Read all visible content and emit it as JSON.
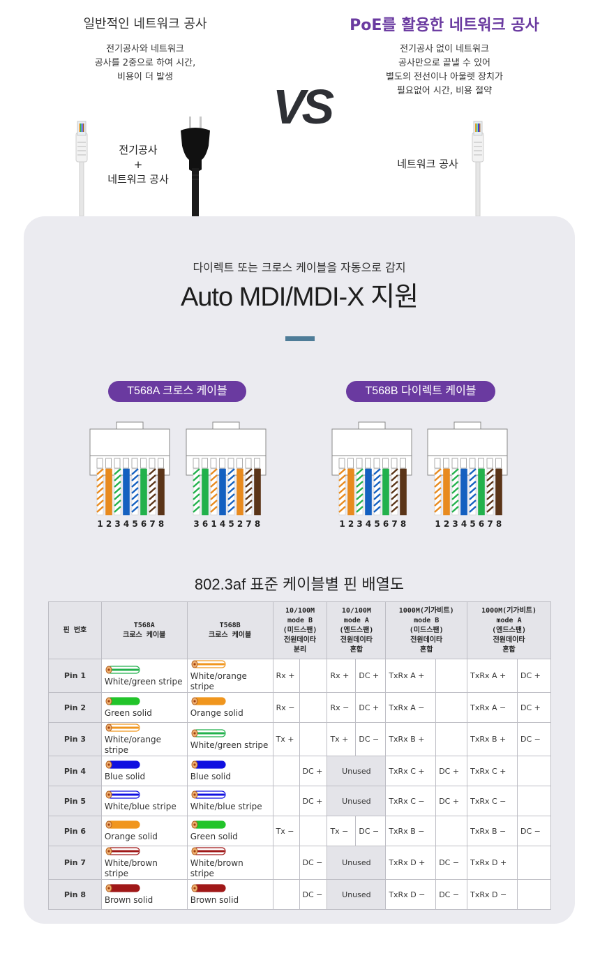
{
  "comparison": {
    "left": {
      "title": "일반적인 네트워크 공사",
      "desc_lines": [
        "전기공사와 네트워크",
        "공사를 2중으로 하여 시간,",
        "비용이 더 발생"
      ],
      "label_lines": [
        "전기공사",
        "+",
        "네트워크 공사"
      ]
    },
    "vs": "VS",
    "right": {
      "title": "PoE를 활용한 네트워크 공사",
      "desc_lines": [
        "전기공사 없이 네트워크",
        "공사만으로 끝낼 수 있어",
        "별도의 전선이나 아울렛 장치가",
        "필요없어 시간, 비용 절약"
      ],
      "label_lines": [
        "네트워크 공사"
      ]
    },
    "accent_color": "#6a3aa0"
  },
  "mdi": {
    "subtitle": "다이렉트 또는 크로스 케이블을 자동으로 감지",
    "title": "Auto MDI/MDI-X 지원",
    "pill_a": "T568A 크로스 케이블",
    "pill_b": "T568B 다이렉트 케이블",
    "connectors": [
      {
        "numbers": "12345678",
        "colors": [
          "wo",
          "o",
          "wg",
          "b",
          "wb",
          "g",
          "wbr",
          "br"
        ]
      },
      {
        "numbers": "36145278",
        "colors": [
          "wg",
          "g",
          "wo",
          "b",
          "wb",
          "o",
          "wbr",
          "br"
        ]
      },
      {
        "numbers": "12345678",
        "colors": [
          "wo",
          "o",
          "wg",
          "b",
          "wb",
          "g",
          "wbr",
          "br"
        ]
      },
      {
        "numbers": "12345678",
        "colors": [
          "wo",
          "o",
          "wg",
          "b",
          "wb",
          "g",
          "wbr",
          "br"
        ]
      }
    ]
  },
  "table": {
    "title": "802.3af  표준 케이블별 핀 배열도",
    "headers": {
      "pin": "핀 번호",
      "t568a": [
        "T568A",
        "크로스 케이블"
      ],
      "t568b": [
        "T568B",
        "크로스 케이블"
      ],
      "mode_b_100": [
        "10/100M",
        "mode B",
        "(미드스팬)",
        "전원데이타",
        "분리"
      ],
      "mode_a_100": [
        "10/100M",
        "mode A",
        "(엔드스팬)",
        "전원데이타",
        "혼합"
      ],
      "mode_b_1000": [
        "1000M(기가비트)",
        "mode B",
        "(미드스팬)",
        "전원데이타",
        "혼합"
      ],
      "mode_a_1000": [
        "1000M(기가비트)",
        "mode A",
        "(엔드스팬)",
        "전원데이타",
        "혼합"
      ]
    },
    "unused_label": "Unused",
    "rows": [
      {
        "pin": "Pin 1",
        "a": {
          "name": "White/green stripe",
          "color": "#22b14c",
          "stripe": true
        },
        "b": {
          "name": "White/orange stripe",
          "color": "#f0961e",
          "stripe": true
        },
        "c1": "Rx +",
        "c2": "",
        "c3": "Rx +",
        "c4": "DC +",
        "c5": "TxRx A +",
        "c6": "",
        "c7": "TxRx A +",
        "c8": "DC +"
      },
      {
        "pin": "Pin 2",
        "a": {
          "name": "Green solid",
          "color": "#22c42a",
          "stripe": false
        },
        "b": {
          "name": "Orange solid",
          "color": "#f0961e",
          "stripe": false
        },
        "c1": "Rx −",
        "c2": "",
        "c3": "Rx −",
        "c4": "DC +",
        "c5": "TxRx A −",
        "c6": "",
        "c7": "TxRx A −",
        "c8": "DC +"
      },
      {
        "pin": "Pin 3",
        "a": {
          "name": "White/orange stripe",
          "color": "#f0961e",
          "stripe": true
        },
        "b": {
          "name": "White/green stripe",
          "color": "#22b14c",
          "stripe": true
        },
        "c1": "Tx +",
        "c2": "",
        "c3": "Tx +",
        "c4": "DC −",
        "c5": "TxRx B +",
        "c6": "",
        "c7": "TxRx B +",
        "c8": "DC −"
      },
      {
        "pin": "Pin 4",
        "a": {
          "name": "Blue solid",
          "color": "#1010e0",
          "stripe": false
        },
        "b": {
          "name": "Blue solid",
          "color": "#1010e0",
          "stripe": false
        },
        "c1": "",
        "c2": "DC +",
        "unused": true,
        "c5": "TxRx C +",
        "c6": "DC +",
        "c7": "TxRx C +",
        "c8": ""
      },
      {
        "pin": "Pin 5",
        "a": {
          "name": "White/blue stripe",
          "color": "#1010e0",
          "stripe": true
        },
        "b": {
          "name": "White/blue stripe",
          "color": "#1010e0",
          "stripe": true
        },
        "c1": "",
        "c2": "DC +",
        "unused": true,
        "c5": "TxRx C −",
        "c6": "DC +",
        "c7": "TxRx C −",
        "c8": ""
      },
      {
        "pin": "Pin 6",
        "a": {
          "name": "Orange solid",
          "color": "#f0961e",
          "stripe": false
        },
        "b": {
          "name": "Green solid",
          "color": "#22c42a",
          "stripe": false
        },
        "c1": "Tx −",
        "c2": "",
        "c3": "Tx −",
        "c4": "DC −",
        "c5": "TxRx B −",
        "c6": "",
        "c7": "TxRx B −",
        "c8": "DC −"
      },
      {
        "pin": "Pin 7",
        "a": {
          "name": "White/brown stripe",
          "color": "#a01818",
          "stripe": true
        },
        "b": {
          "name": "White/brown stripe",
          "color": "#a01818",
          "stripe": true
        },
        "c1": "",
        "c2": "DC −",
        "unused": true,
        "c5": "TxRx D +",
        "c6": "DC −",
        "c7": "TxRx D +",
        "c8": ""
      },
      {
        "pin": "Pin 8",
        "a": {
          "name": "Brown solid",
          "color": "#a01818",
          "stripe": false
        },
        "b": {
          "name": "Brown solid",
          "color": "#a01818",
          "stripe": false
        },
        "c1": "",
        "c2": "DC −",
        "unused": true,
        "c5": "TxRx D −",
        "c6": "DC −",
        "c7": "TxRx D −",
        "c8": ""
      }
    ]
  }
}
